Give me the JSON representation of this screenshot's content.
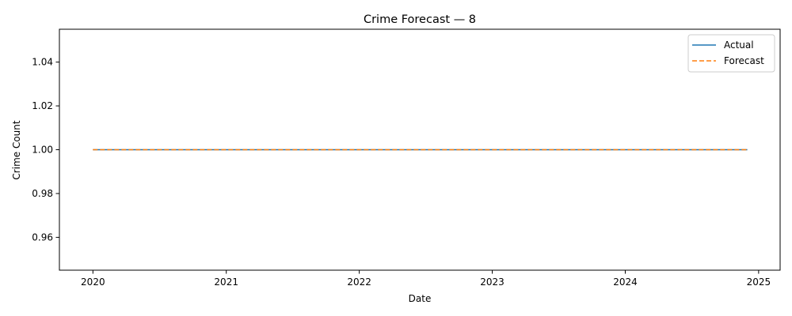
{
  "chart_data": {
    "type": "line",
    "title": "Crime Forecast — 8",
    "xlabel": "Date",
    "ylabel": "Crime Count",
    "x_range": [
      "2020-01-01",
      "2024-12-01"
    ],
    "xlim": [
      "2019-10-01",
      "2025-03-01"
    ],
    "ylim": [
      0.945,
      1.055
    ],
    "x_ticks": [
      {
        "date": "2020-01-01",
        "label": "2020"
      },
      {
        "date": "2021-01-01",
        "label": "2021"
      },
      {
        "date": "2022-01-01",
        "label": "2022"
      },
      {
        "date": "2023-01-01",
        "label": "2023"
      },
      {
        "date": "2024-01-01",
        "label": "2024"
      },
      {
        "date": "2025-01-01",
        "label": "2025"
      }
    ],
    "y_ticks": [
      {
        "value": 0.96,
        "label": "0.96"
      },
      {
        "value": 0.98,
        "label": "0.98"
      },
      {
        "value": 1.0,
        "label": "1.00"
      },
      {
        "value": 1.02,
        "label": "1.02"
      },
      {
        "value": 1.04,
        "label": "1.04"
      }
    ],
    "series": [
      {
        "name": "Actual",
        "color": "#1f77b4",
        "style": "solid",
        "points": [
          {
            "x": "2020-01-01",
            "y": 1.0
          },
          {
            "x": "2024-12-01",
            "y": 1.0
          }
        ]
      },
      {
        "name": "Forecast",
        "color": "#ff7f0e",
        "style": "dashed",
        "points": [
          {
            "x": "2020-01-01",
            "y": 1.0
          },
          {
            "x": "2024-12-01",
            "y": 1.0
          }
        ]
      }
    ],
    "legend": "top-right",
    "grid": false
  }
}
